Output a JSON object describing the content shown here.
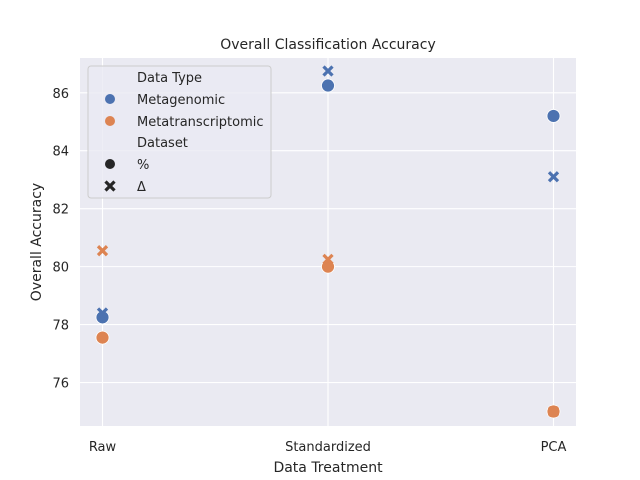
{
  "chart_data": {
    "type": "scatter",
    "title": "Overall Classification Accuracy",
    "xlabel": "Data Treatment",
    "ylabel": "Overall Accuracy",
    "categories": [
      "Raw",
      "Standardized",
      "PCA"
    ],
    "ylim": [
      74.5,
      87.2
    ],
    "yticks": [
      76,
      78,
      80,
      82,
      84,
      86
    ],
    "grid": true,
    "legend": {
      "placement": "top-left",
      "hue_title": "Data Type",
      "style_title": "Dataset",
      "hue_entries": [
        {
          "label": "Metagenomic",
          "color": "#4c72b0"
        },
        {
          "label": "Metatranscriptomic",
          "color": "#dd8452"
        }
      ],
      "style_entries": [
        {
          "label": "%",
          "marker": "circle"
        },
        {
          "label": "Δ",
          "marker": "x"
        }
      ]
    },
    "series": [
      {
        "data_type": "Metagenomic",
        "dataset": "%",
        "values": [
          78.25,
          86.25,
          85.2
        ]
      },
      {
        "data_type": "Metagenomic",
        "dataset": "Δ",
        "values": [
          78.4,
          86.75,
          83.1
        ]
      },
      {
        "data_type": "Metatranscriptomic",
        "dataset": "%",
        "values": [
          77.55,
          80.0,
          75.0
        ]
      },
      {
        "data_type": "Metatranscriptomic",
        "dataset": "Δ",
        "values": [
          80.55,
          80.25,
          75.0
        ]
      }
    ],
    "colors": {
      "background": "#eaeaf2",
      "grid": "#ffffff"
    }
  }
}
